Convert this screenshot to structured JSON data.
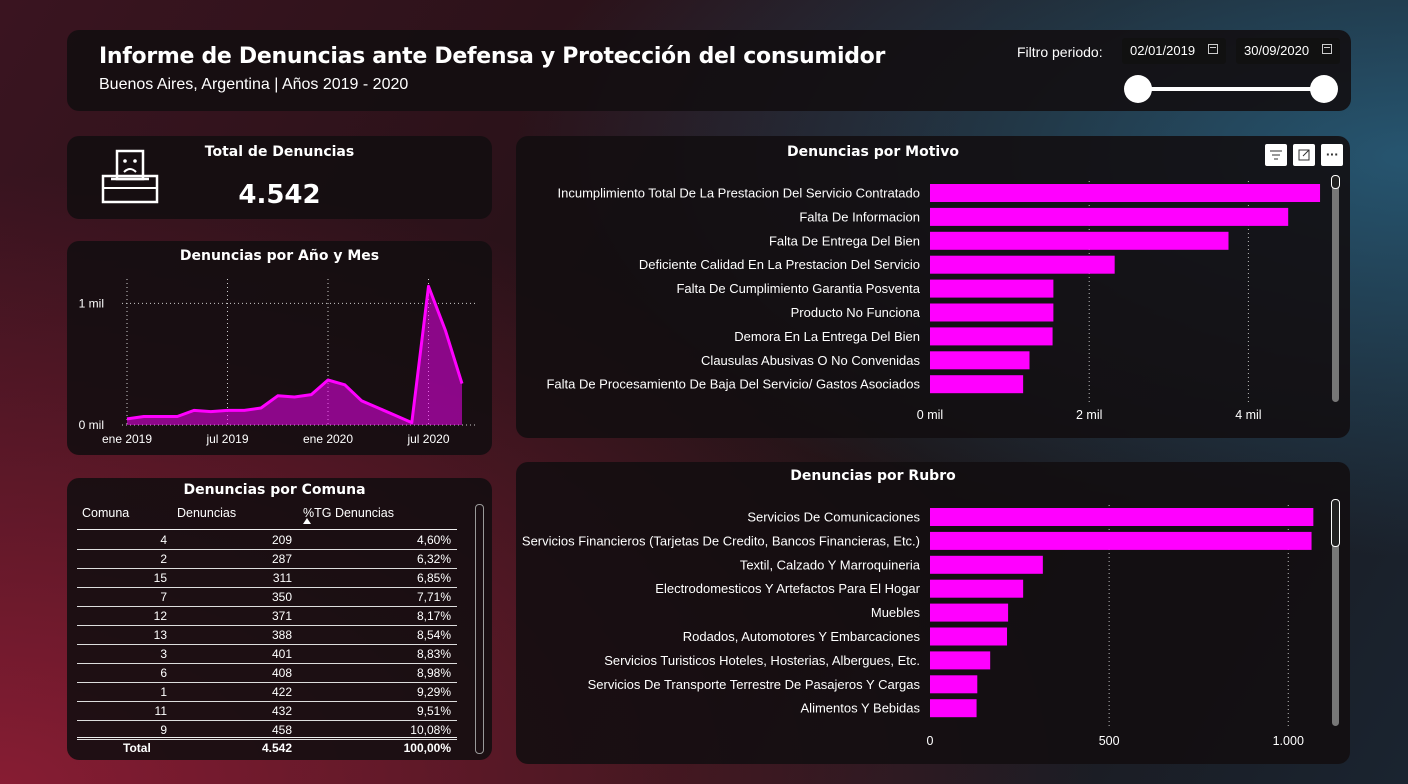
{
  "header": {
    "title": "Informe de Denuncias ante Defensa y Protección del consumidor",
    "subtitle": "Buenos Aires, Argentina | Años 2019 - 2020",
    "filter_label": "Filtro periodo:",
    "date_from": "02/01/2019",
    "date_to": "30/09/2020",
    "slider": {
      "min": 0,
      "max": 1,
      "low": 0,
      "high": 1
    }
  },
  "total": {
    "title": "Total de Denuncias",
    "value": "4.542"
  },
  "accent": "#ff00ff",
  "line_chart": {
    "title": "Denuncias por Año y Mes",
    "yticks": [
      "1 mil",
      "0 mil"
    ],
    "xticks": [
      "ene 2019",
      "jul 2019",
      "ene 2020",
      "jul 2020"
    ]
  },
  "chart_data": [
    {
      "type": "area",
      "title": "Denuncias por Año y Mes",
      "x": [
        "2019-01",
        "2019-02",
        "2019-03",
        "2019-04",
        "2019-05",
        "2019-06",
        "2019-07",
        "2019-08",
        "2019-09",
        "2019-10",
        "2019-11",
        "2019-12",
        "2020-01",
        "2020-02",
        "2020-03",
        "2020-04",
        "2020-05",
        "2020-06",
        "2020-07",
        "2020-08",
        "2020-09"
      ],
      "values": [
        50,
        70,
        70,
        70,
        120,
        110,
        120,
        120,
        140,
        240,
        230,
        250,
        370,
        330,
        200,
        140,
        80,
        20,
        1140,
        780,
        340
      ],
      "ylim": [
        0,
        1200
      ],
      "grid": true
    },
    {
      "type": "bar",
      "orientation": "horizontal",
      "title": "Denuncias por Motivo",
      "categories": [
        "Incumplimiento Total De La Prestacion Del Servicio Contratado",
        "Falta De Informacion",
        "Falta De Entrega Del Bien",
        "Deficiente Calidad En La Prestacion Del Servicio",
        "Falta De Cumplimiento Garantia Posventa",
        "Producto No Funciona",
        "Demora En La Entrega Del Bien",
        "Clausulas Abusivas O No Convenidas",
        "Falta De Procesamiento De Baja Del Servicio/ Gastos Asociados"
      ],
      "values": [
        4900,
        4500,
        3750,
        2320,
        1550,
        1550,
        1540,
        1250,
        1170
      ],
      "xlim": [
        0,
        5000
      ],
      "xticks": [
        "0 mil",
        "2 mil",
        "4 mil"
      ],
      "xtick_values": [
        0,
        2000,
        4000
      ]
    },
    {
      "type": "bar",
      "orientation": "horizontal",
      "title": "Denuncias por Rubro",
      "categories": [
        "Servicios De Comunicaciones",
        "Servicios Financieros (Tarjetas De Credito, Bancos Financieras, Etc.)",
        "Textil, Calzado Y Marroquineria",
        "Electrodomesticos Y Artefactos Para El Hogar",
        "Muebles",
        "Rodados, Automotores Y Embarcaciones",
        "Servicios Turisticos Hoteles, Hosterias, Albergues, Etc.",
        "Servicios De Transporte Terrestre De Pasajeros Y Cargas",
        "Alimentos Y Bebidas"
      ],
      "values": [
        1070,
        1065,
        315,
        260,
        218,
        215,
        168,
        132,
        130
      ],
      "xlim": [
        0,
        1150
      ],
      "xticks": [
        "0",
        "500",
        "1.000"
      ],
      "xtick_values": [
        0,
        500,
        1000
      ]
    },
    {
      "type": "table",
      "title": "Denuncias por Comuna",
      "columns": [
        "Comuna",
        "Denuncias",
        "%TG Denuncias"
      ],
      "rows": [
        [
          "4",
          "209",
          "4,60%"
        ],
        [
          "2",
          "287",
          "6,32%"
        ],
        [
          "15",
          "311",
          "6,85%"
        ],
        [
          "7",
          "350",
          "7,71%"
        ],
        [
          "12",
          "371",
          "8,17%"
        ],
        [
          "13",
          "388",
          "8,54%"
        ],
        [
          "3",
          "401",
          "8,83%"
        ],
        [
          "6",
          "408",
          "8,98%"
        ],
        [
          "1",
          "422",
          "9,29%"
        ],
        [
          "11",
          "432",
          "9,51%"
        ],
        [
          "9",
          "458",
          "10,08%"
        ]
      ],
      "total": [
        "Total",
        "4.542",
        "100,00%"
      ]
    }
  ],
  "icons": {
    "ballot": "ballot-box-sad-icon",
    "filter": "filter-icon",
    "focus": "focus-mode-icon",
    "more": "more-options-icon",
    "calendar": "calendar-icon",
    "sort": "sort-ascending-icon"
  }
}
